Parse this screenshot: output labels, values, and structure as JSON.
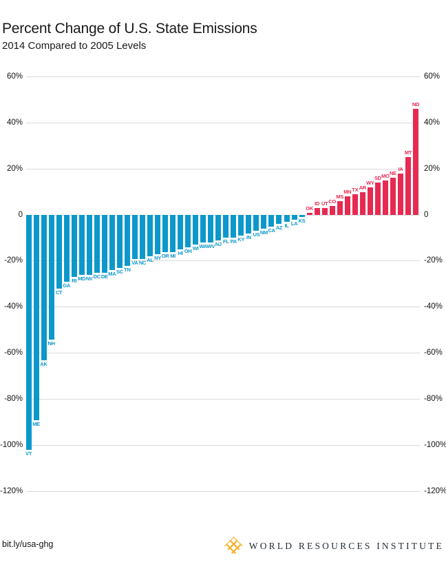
{
  "header": {
    "title": "Percent Change of U.S. State Emissions",
    "subtitle": "2014 Compared to 2005 Levels"
  },
  "footer": {
    "link": "bit.ly/usa-ghg",
    "brand": "WORLD RESOURCES INSTITUTE",
    "logo_color": "#f9b233"
  },
  "colors": {
    "negative_bar": "#0d98cb",
    "positive_bar": "#e62a52",
    "gridline": "#d9d9d9",
    "axis_text": "#111111"
  },
  "chart_data": {
    "type": "bar",
    "title": "Percent Change of U.S. State Emissions",
    "subtitle": "2014 Compared to 2005 Levels",
    "xlabel": "",
    "ylabel": "",
    "ylim": [
      -120,
      60
    ],
    "grid": true,
    "legend": "none",
    "yticks": [
      60,
      40,
      20,
      0,
      -20,
      -40,
      -60,
      -80,
      -100,
      -120
    ],
    "ytick_labels": [
      "60%",
      "40%",
      "20%",
      "0",
      "-20%",
      "-40%",
      "-60%",
      "-80%",
      "-100%",
      "-120%"
    ],
    "value_unit": "percent",
    "categories": [
      "VT",
      "ME",
      "AK",
      "NH",
      "CT",
      "GA",
      "RI",
      "MD",
      "NV",
      "DC",
      "DE",
      "MA",
      "SC",
      "TN",
      "VA",
      "NC",
      "AL",
      "NY",
      "OR",
      "MI",
      "HI",
      "OH",
      "WI",
      "WA",
      "WV",
      "NJ",
      "FL",
      "PA",
      "KY",
      "IN",
      "US",
      "NM",
      "CA",
      "AZ",
      "IL",
      "LA",
      "KS",
      "OK",
      "ID",
      "UT",
      "CO",
      "MS",
      "MN",
      "TX",
      "AR",
      "WY",
      "SD",
      "MO",
      "NE",
      "IA",
      "MT",
      "ND"
    ],
    "values": [
      -102,
      -89,
      -63,
      -54,
      -32,
      -29,
      -27,
      -26,
      -26,
      -25,
      -25,
      -24,
      -23,
      -22,
      -19,
      -19,
      -18,
      -17,
      -16,
      -16,
      -15,
      -14,
      -13,
      -12,
      -12,
      -11,
      -10,
      -10,
      -9,
      -8,
      -7,
      -6,
      -5,
      -4,
      -3,
      -2,
      -1,
      1,
      3,
      3,
      4,
      6,
      8,
      9,
      10,
      12,
      14,
      15,
      16,
      18,
      25,
      46
    ],
    "color_rule": "values below zero use negative_bar blue, values above zero use positive_bar red"
  }
}
